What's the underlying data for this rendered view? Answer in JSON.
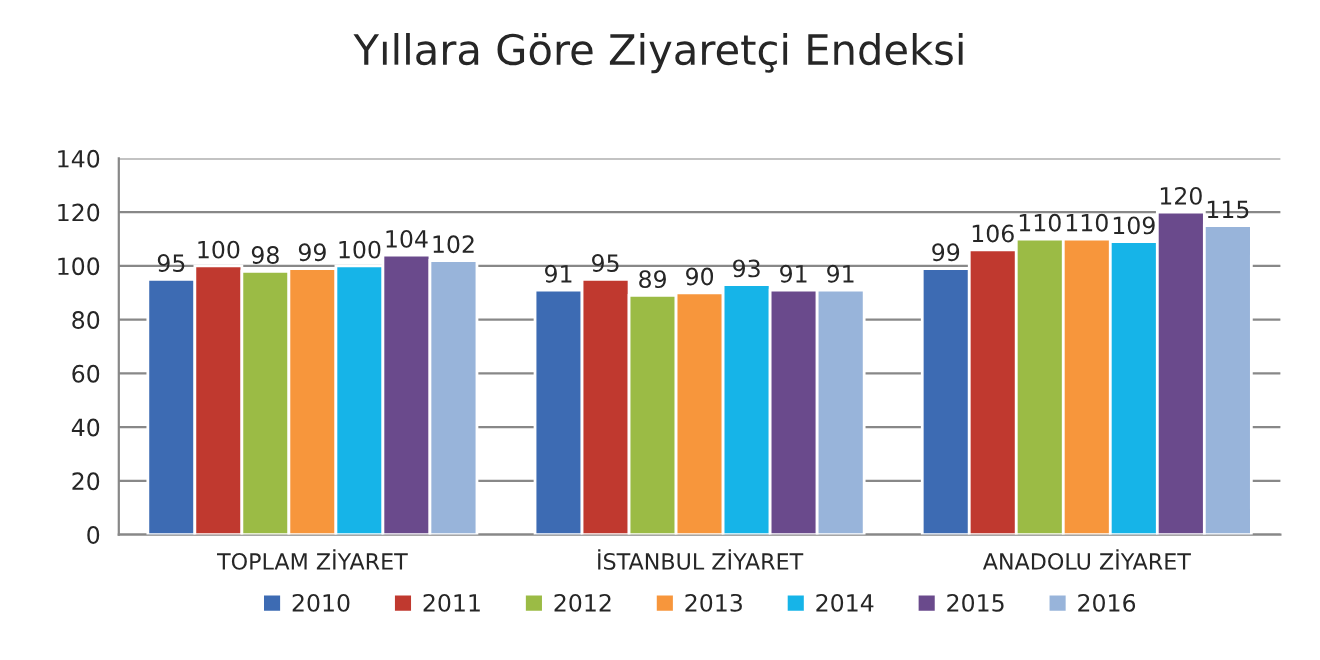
{
  "chart_data": {
    "type": "bar",
    "title": "Yıllara Göre Ziyaretçi Endeksi",
    "categories": [
      "TOPLAM ZİYARET",
      "İSTANBUL ZİYARET",
      "ANADOLU ZİYARET"
    ],
    "series": [
      {
        "name": "2010",
        "color": "#3d6bb3",
        "values": [
          95,
          91,
          99
        ]
      },
      {
        "name": "2011",
        "color": "#c0392f",
        "values": [
          100,
          95,
          106
        ]
      },
      {
        "name": "2012",
        "color": "#9bbb45",
        "values": [
          98,
          89,
          110
        ]
      },
      {
        "name": "2013",
        "color": "#f7963c",
        "values": [
          99,
          90,
          110
        ]
      },
      {
        "name": "2014",
        "color": "#16b4e8",
        "values": [
          100,
          93,
          109
        ]
      },
      {
        "name": "2015",
        "color": "#6a4a8c",
        "values": [
          104,
          91,
          120
        ]
      },
      {
        "name": "2016",
        "color": "#98b4da",
        "values": [
          102,
          91,
          115
        ]
      }
    ],
    "ylim": [
      0,
      140
    ],
    "yticks": [
      0,
      20,
      40,
      60,
      80,
      100,
      120,
      140
    ],
    "grid": "y",
    "legend": "bottom",
    "data_labels": true
  }
}
